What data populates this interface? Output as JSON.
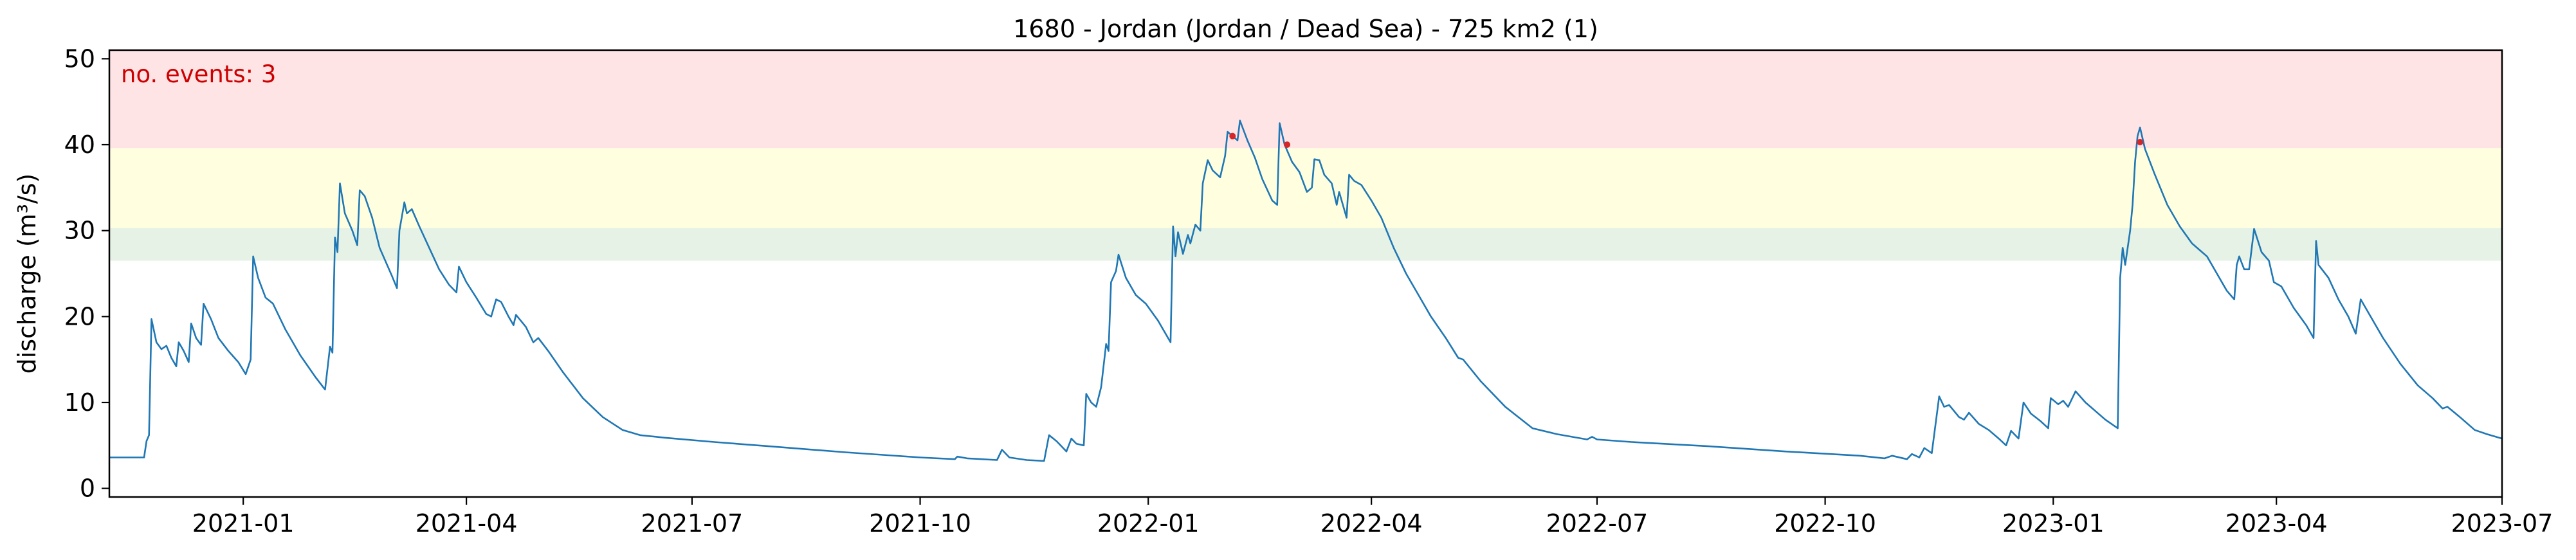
{
  "chart_data": {
    "type": "line",
    "title": "1680 - Jordan (Jordan / Dead Sea) - 725 km2 (1)",
    "xlabel": "",
    "ylabel": "discharge (m³/s)",
    "xlim": [
      "2020-11-08",
      "2023-07-01"
    ],
    "ylim": [
      -1,
      51
    ],
    "yticks": [
      0,
      10,
      20,
      30,
      40,
      50
    ],
    "xticks": [
      "2021-01",
      "2021-04",
      "2021-07",
      "2021-10",
      "2022-01",
      "2022-04",
      "2022-07",
      "2022-10",
      "2023-01",
      "2023-04",
      "2023-07"
    ],
    "grid": false,
    "annotation": {
      "text": "no. events: 3",
      "color": "#cc0000"
    },
    "bands": [
      {
        "from": 26.5,
        "to": 30.3,
        "color": "#e5f2e5"
      },
      {
        "from": 30.3,
        "to": 39.6,
        "color": "#ffffe0"
      },
      {
        "from": 39.6,
        "to": 51,
        "color": "#ffe4e6"
      }
    ],
    "series": [
      {
        "color": "#1f77b4",
        "points": [
          [
            "2020-11-08",
            3.6
          ],
          [
            "2020-11-22",
            3.6
          ],
          [
            "2020-11-23",
            5.5
          ],
          [
            "2020-11-24",
            6.2
          ],
          [
            "2020-11-25",
            19.7
          ],
          [
            "2020-11-27",
            17.0
          ],
          [
            "2020-11-29",
            16.2
          ],
          [
            "2020-12-01",
            16.6
          ],
          [
            "2020-12-03",
            15.2
          ],
          [
            "2020-12-05",
            14.2
          ],
          [
            "2020-12-06",
            17.0
          ],
          [
            "2020-12-08",
            16.0
          ],
          [
            "2020-12-10",
            14.7
          ],
          [
            "2020-12-11",
            19.2
          ],
          [
            "2020-12-13",
            17.5
          ],
          [
            "2020-12-15",
            16.7
          ],
          [
            "2020-12-16",
            21.5
          ],
          [
            "2020-12-19",
            19.7
          ],
          [
            "2020-12-22",
            17.5
          ],
          [
            "2020-12-26",
            16.0
          ],
          [
            "2020-12-30",
            14.7
          ],
          [
            "2021-01-02",
            13.3
          ],
          [
            "2021-01-04",
            15.0
          ],
          [
            "2021-01-05",
            27.0
          ],
          [
            "2021-01-07",
            24.5
          ],
          [
            "2021-01-10",
            22.2
          ],
          [
            "2021-01-13",
            21.5
          ],
          [
            "2021-01-18",
            18.5
          ],
          [
            "2021-01-24",
            15.5
          ],
          [
            "2021-01-30",
            13.0
          ],
          [
            "2021-02-03",
            11.5
          ],
          [
            "2021-02-05",
            16.5
          ],
          [
            "2021-02-06",
            15.8
          ],
          [
            "2021-02-07",
            29.2
          ],
          [
            "2021-02-08",
            27.5
          ],
          [
            "2021-02-09",
            35.5
          ],
          [
            "2021-02-11",
            32.0
          ],
          [
            "2021-02-14",
            30.0
          ],
          [
            "2021-02-16",
            28.3
          ],
          [
            "2021-02-17",
            34.7
          ],
          [
            "2021-02-19",
            34.0
          ],
          [
            "2021-02-22",
            31.5
          ],
          [
            "2021-02-25",
            28.0
          ],
          [
            "2021-03-02",
            24.7
          ],
          [
            "2021-03-04",
            23.3
          ],
          [
            "2021-03-05",
            30.0
          ],
          [
            "2021-03-07",
            33.3
          ],
          [
            "2021-03-08",
            32.0
          ],
          [
            "2021-03-10",
            32.5
          ],
          [
            "2021-03-13",
            30.5
          ],
          [
            "2021-03-17",
            28.0
          ],
          [
            "2021-03-21",
            25.5
          ],
          [
            "2021-03-25",
            23.7
          ],
          [
            "2021-03-28",
            22.8
          ],
          [
            "2021-03-29",
            25.8
          ],
          [
            "2021-04-01",
            24.0
          ],
          [
            "2021-04-05",
            22.2
          ],
          [
            "2021-04-09",
            20.3
          ],
          [
            "2021-04-11",
            20.0
          ],
          [
            "2021-04-13",
            22.0
          ],
          [
            "2021-04-15",
            21.7
          ],
          [
            "2021-04-18",
            20.0
          ],
          [
            "2021-04-20",
            19.0
          ],
          [
            "2021-04-21",
            20.2
          ],
          [
            "2021-04-25",
            18.8
          ],
          [
            "2021-04-28",
            17.0
          ],
          [
            "2021-04-30",
            17.5
          ],
          [
            "2021-05-04",
            16.0
          ],
          [
            "2021-05-10",
            13.5
          ],
          [
            "2021-05-18",
            10.5
          ],
          [
            "2021-05-26",
            8.3
          ],
          [
            "2021-06-03",
            6.8
          ],
          [
            "2021-06-10",
            6.2
          ],
          [
            "2021-06-20",
            5.9
          ],
          [
            "2021-07-10",
            5.4
          ],
          [
            "2021-08-01",
            4.9
          ],
          [
            "2021-09-01",
            4.2
          ],
          [
            "2021-10-01",
            3.6
          ],
          [
            "2021-10-15",
            3.4
          ],
          [
            "2021-10-16",
            3.7
          ],
          [
            "2021-10-20",
            3.5
          ],
          [
            "2021-11-01",
            3.3
          ],
          [
            "2021-11-03",
            4.5
          ],
          [
            "2021-11-06",
            3.6
          ],
          [
            "2021-11-13",
            3.3
          ],
          [
            "2021-11-20",
            3.2
          ],
          [
            "2021-11-22",
            6.2
          ],
          [
            "2021-11-25",
            5.5
          ],
          [
            "2021-11-29",
            4.3
          ],
          [
            "2021-12-01",
            5.8
          ],
          [
            "2021-12-03",
            5.2
          ],
          [
            "2021-12-06",
            5.0
          ],
          [
            "2021-12-07",
            11.0
          ],
          [
            "2021-12-09",
            10.0
          ],
          [
            "2021-12-11",
            9.5
          ],
          [
            "2021-12-13",
            11.8
          ],
          [
            "2021-12-15",
            16.8
          ],
          [
            "2021-12-16",
            16.0
          ],
          [
            "2021-12-17",
            24.0
          ],
          [
            "2021-12-19",
            25.3
          ],
          [
            "2021-12-20",
            27.2
          ],
          [
            "2021-12-23",
            24.5
          ],
          [
            "2021-12-27",
            22.5
          ],
          [
            "2021-12-31",
            21.5
          ],
          [
            "2022-01-05",
            19.5
          ],
          [
            "2022-01-10",
            17.0
          ],
          [
            "2022-01-11",
            30.5
          ],
          [
            "2022-01-12",
            27.0
          ],
          [
            "2022-01-13",
            29.8
          ],
          [
            "2022-01-15",
            27.3
          ],
          [
            "2022-01-17",
            29.5
          ],
          [
            "2022-01-18",
            28.5
          ],
          [
            "2022-01-20",
            30.7
          ],
          [
            "2022-01-22",
            30.0
          ],
          [
            "2022-01-23",
            35.5
          ],
          [
            "2022-01-25",
            38.2
          ],
          [
            "2022-01-27",
            37.0
          ],
          [
            "2022-01-30",
            36.2
          ],
          [
            "2022-02-01",
            38.7
          ],
          [
            "2022-02-02",
            41.5
          ],
          [
            "2022-02-04",
            41.0
          ],
          [
            "2022-02-06",
            40.5
          ],
          [
            "2022-02-07",
            42.8
          ],
          [
            "2022-02-10",
            40.5
          ],
          [
            "2022-02-13",
            38.5
          ],
          [
            "2022-02-16",
            36.0
          ],
          [
            "2022-02-20",
            33.5
          ],
          [
            "2022-02-22",
            33.0
          ],
          [
            "2022-02-23",
            42.5
          ],
          [
            "2022-02-25",
            40.0
          ],
          [
            "2022-02-28",
            38.0
          ],
          [
            "2022-03-03",
            36.8
          ],
          [
            "2022-03-06",
            34.5
          ],
          [
            "2022-03-08",
            35.0
          ],
          [
            "2022-03-09",
            38.3
          ],
          [
            "2022-03-11",
            38.2
          ],
          [
            "2022-03-13",
            36.5
          ],
          [
            "2022-03-16",
            35.5
          ],
          [
            "2022-03-18",
            33.0
          ],
          [
            "2022-03-19",
            34.5
          ],
          [
            "2022-03-22",
            31.5
          ],
          [
            "2022-03-23",
            36.5
          ],
          [
            "2022-03-25",
            35.8
          ],
          [
            "2022-03-28",
            35.3
          ],
          [
            "2022-04-01",
            33.5
          ],
          [
            "2022-04-05",
            31.5
          ],
          [
            "2022-04-10",
            28.0
          ],
          [
            "2022-04-15",
            25.0
          ],
          [
            "2022-04-20",
            22.5
          ],
          [
            "2022-04-25",
            20.0
          ],
          [
            "2022-05-01",
            17.5
          ],
          [
            "2022-05-06",
            15.2
          ],
          [
            "2022-05-08",
            15.0
          ],
          [
            "2022-05-15",
            12.5
          ],
          [
            "2022-05-25",
            9.5
          ],
          [
            "2022-06-05",
            7.0
          ],
          [
            "2022-06-15",
            6.3
          ],
          [
            "2022-06-27",
            5.7
          ],
          [
            "2022-06-29",
            6.0
          ],
          [
            "2022-07-01",
            5.7
          ],
          [
            "2022-07-15",
            5.4
          ],
          [
            "2022-08-15",
            4.9
          ],
          [
            "2022-09-15",
            4.3
          ],
          [
            "2022-10-15",
            3.8
          ],
          [
            "2022-10-25",
            3.5
          ],
          [
            "2022-10-28",
            3.8
          ],
          [
            "2022-11-03",
            3.4
          ],
          [
            "2022-11-05",
            4.0
          ],
          [
            "2022-11-08",
            3.6
          ],
          [
            "2022-11-10",
            4.7
          ],
          [
            "2022-11-13",
            4.1
          ],
          [
            "2022-11-16",
            10.7
          ],
          [
            "2022-11-18",
            9.5
          ],
          [
            "2022-11-20",
            9.7
          ],
          [
            "2022-11-24",
            8.3
          ],
          [
            "2022-11-26",
            8.0
          ],
          [
            "2022-11-28",
            8.8
          ],
          [
            "2022-12-02",
            7.5
          ],
          [
            "2022-12-06",
            6.8
          ],
          [
            "2022-12-10",
            5.8
          ],
          [
            "2022-12-13",
            5.0
          ],
          [
            "2022-12-15",
            6.7
          ],
          [
            "2022-12-18",
            5.8
          ],
          [
            "2022-12-20",
            10.0
          ],
          [
            "2022-12-23",
            8.7
          ],
          [
            "2022-12-27",
            7.8
          ],
          [
            "2022-12-30",
            7.0
          ],
          [
            "2022-12-31",
            10.5
          ],
          [
            "2023-01-03",
            9.8
          ],
          [
            "2023-01-05",
            10.2
          ],
          [
            "2023-01-07",
            9.5
          ],
          [
            "2023-01-10",
            11.3
          ],
          [
            "2023-01-14",
            10.0
          ],
          [
            "2023-01-18",
            9.0
          ],
          [
            "2023-01-22",
            8.0
          ],
          [
            "2023-01-27",
            7.0
          ],
          [
            "2023-01-28",
            24.5
          ],
          [
            "2023-01-29",
            28.0
          ],
          [
            "2023-01-30",
            26.0
          ],
          [
            "2023-02-01",
            30.0
          ],
          [
            "2023-02-02",
            33.0
          ],
          [
            "2023-02-03",
            38.0
          ],
          [
            "2023-02-04",
            41.0
          ],
          [
            "2023-02-05",
            42.0
          ],
          [
            "2023-02-07",
            39.5
          ],
          [
            "2023-02-11",
            36.5
          ],
          [
            "2023-02-16",
            33.0
          ],
          [
            "2023-02-21",
            30.5
          ],
          [
            "2023-02-26",
            28.5
          ],
          [
            "2023-03-04",
            27.0
          ],
          [
            "2023-03-08",
            25.0
          ],
          [
            "2023-03-12",
            23.0
          ],
          [
            "2023-03-15",
            22.0
          ],
          [
            "2023-03-16",
            26.0
          ],
          [
            "2023-03-17",
            27.0
          ],
          [
            "2023-03-19",
            25.5
          ],
          [
            "2023-03-21",
            25.5
          ],
          [
            "2023-03-23",
            30.2
          ],
          [
            "2023-03-26",
            27.5
          ],
          [
            "2023-03-29",
            26.5
          ],
          [
            "2023-03-31",
            24.0
          ],
          [
            "2023-04-03",
            23.5
          ],
          [
            "2023-04-08",
            21.0
          ],
          [
            "2023-04-13",
            19.0
          ],
          [
            "2023-04-16",
            17.5
          ],
          [
            "2023-04-17",
            28.8
          ],
          [
            "2023-04-18",
            26.0
          ],
          [
            "2023-04-22",
            24.5
          ],
          [
            "2023-04-26",
            22.0
          ],
          [
            "2023-04-30",
            20.0
          ],
          [
            "2023-05-03",
            18.0
          ],
          [
            "2023-05-05",
            22.0
          ],
          [
            "2023-05-08",
            20.5
          ],
          [
            "2023-05-14",
            17.5
          ],
          [
            "2023-05-21",
            14.5
          ],
          [
            "2023-05-28",
            12.0
          ],
          [
            "2023-06-03",
            10.5
          ],
          [
            "2023-06-07",
            9.3
          ],
          [
            "2023-06-09",
            9.5
          ],
          [
            "2023-06-14",
            8.3
          ],
          [
            "2023-06-20",
            6.8
          ],
          [
            "2023-06-25",
            6.3
          ],
          [
            "2023-07-01",
            5.8
          ]
        ]
      }
    ],
    "events": {
      "color": "#d62728",
      "points": [
        [
          "2022-02-04",
          41.0
        ],
        [
          "2022-02-26",
          40.0
        ],
        [
          "2023-02-05",
          40.3
        ]
      ]
    }
  }
}
